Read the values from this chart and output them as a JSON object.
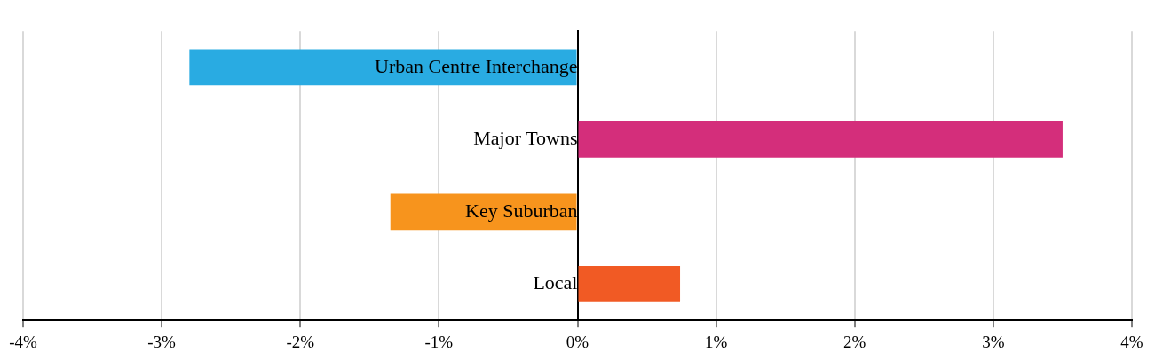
{
  "chart_data": {
    "type": "bar",
    "orientation": "horizontal",
    "categories": [
      "Urban Centre Interchange",
      "Major Towns",
      "Key Suburban",
      "Local"
    ],
    "values": [
      -2.8,
      3.5,
      -1.35,
      0.74
    ],
    "colors": [
      "#29abe2",
      "#d42e7b",
      "#f7941d",
      "#f15a24"
    ],
    "xlim": [
      -4,
      4
    ],
    "xticks": [
      {
        "value": -4,
        "label": "-4%"
      },
      {
        "value": -3,
        "label": "-3%"
      },
      {
        "value": -2,
        "label": "-2%"
      },
      {
        "value": -1,
        "label": "-1%"
      },
      {
        "value": 0,
        "label": "0%"
      },
      {
        "value": 1,
        "label": "1%"
      },
      {
        "value": 2,
        "label": "2%"
      },
      {
        "value": 3,
        "label": "3%"
      },
      {
        "value": 4,
        "label": "4%"
      }
    ],
    "grid": "x",
    "legend": false
  }
}
